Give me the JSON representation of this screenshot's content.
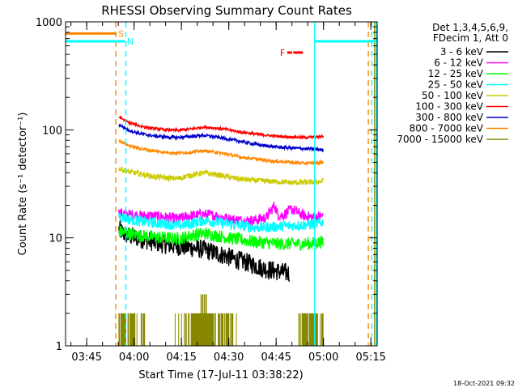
{
  "chart_data": {
    "type": "line",
    "title": "RHESSI Observing Summary Count Rates",
    "xlabel": "Start Time (17-Jul-11 03:38:22)",
    "ylabel": "Count Rate (s⁻¹ detector⁻¹)",
    "yscale": "log",
    "ylim": [
      1,
      1000
    ],
    "xlim_minutes": [
      38.3,
      137.0
    ],
    "x_ticks": [
      {
        "label": "03:45",
        "t": 45
      },
      {
        "label": "04:00",
        "t": 60
      },
      {
        "label": "04:15",
        "t": 75
      },
      {
        "label": "04:30",
        "t": 90
      },
      {
        "label": "04:45",
        "t": 105
      },
      {
        "label": "05:00",
        "t": 120
      },
      {
        "label": "05:15",
        "t": 135
      }
    ],
    "y_ticks": [
      {
        "label": "1",
        "v": 1
      },
      {
        "label": "10",
        "v": 10
      },
      {
        "label": "100",
        "v": 100
      },
      {
        "label": "1000",
        "v": 1000
      }
    ],
    "legend": {
      "header": [
        "Det 1,3,4,5,6,9,",
        "FDecim 1, Att 0"
      ],
      "position": "top-right"
    },
    "series": [
      {
        "name": "3 - 6 keV",
        "color": "#000000",
        "t": [
          55.2,
          56.5,
          58,
          61,
          64,
          67,
          72,
          77,
          82,
          86,
          89,
          92,
          95,
          98,
          101,
          104,
          107,
          109.3
        ],
        "y": [
          12,
          11,
          10.5,
          10,
          9.5,
          9,
          8.5,
          8.2,
          7.8,
          7.2,
          6.8,
          6.3,
          6,
          5.6,
          5.2,
          5,
          4.8,
          4.7
        ]
      },
      {
        "name": "6 - 12 keV",
        "color": "#ff00ff",
        "t": [
          55.2,
          58,
          62,
          66,
          70,
          74,
          78,
          82,
          86,
          90,
          94,
          98,
          102,
          104.5,
          105.5,
          107,
          110,
          112,
          114,
          116,
          118,
          119.9
        ],
        "y": [
          17,
          16.5,
          16,
          16,
          15.5,
          15,
          16,
          16.5,
          16,
          15,
          14.5,
          14.5,
          15.5,
          20,
          16.5,
          16,
          18.5,
          17,
          16,
          15.5,
          15.5,
          16
        ]
      },
      {
        "name": "12 - 25 keV",
        "color": "#00ff00",
        "t": [
          55.2,
          58,
          62,
          66,
          70,
          74,
          78,
          82,
          86,
          90,
          94,
          98,
          102,
          106,
          110,
          114,
          118,
          119.9
        ],
        "y": [
          11.5,
          11,
          10.5,
          10.2,
          10,
          9.8,
          10.5,
          11,
          10.5,
          10,
          9.6,
          9.2,
          9,
          8.8,
          8.8,
          8.8,
          9,
          9.2
        ]
      },
      {
        "name": "25 - 50 keV",
        "color": "#00ffff",
        "t": [
          55.2,
          58,
          62,
          66,
          70,
          74,
          78,
          82,
          86,
          90,
          94,
          98,
          102,
          106,
          110,
          114,
          118,
          119.9
        ],
        "y": [
          16,
          15,
          14.2,
          13.8,
          13.5,
          13,
          13.5,
          14.5,
          14,
          13.5,
          13,
          12.5,
          12.5,
          12.8,
          13,
          13.2,
          13.5,
          14
        ]
      },
      {
        "name": "50 - 100 keV",
        "color": "#cccc00",
        "t": [
          55.2,
          58,
          62,
          66,
          70,
          74,
          78,
          82,
          86,
          90,
          94,
          98,
          102,
          106,
          110,
          114,
          118,
          119.9
        ],
        "y": [
          44,
          41,
          39,
          37,
          36,
          35.5,
          38,
          40,
          38.5,
          36.5,
          35,
          34,
          33.5,
          33,
          32.5,
          32.5,
          33,
          33.5
        ]
      },
      {
        "name": "100 - 300 keV",
        "color": "#ff0000",
        "t": [
          55.2,
          58,
          62,
          66,
          70,
          74,
          78,
          82,
          86,
          90,
          94,
          98,
          102,
          106,
          110,
          114,
          118,
          119.9
        ],
        "y": [
          132,
          118,
          108,
          103,
          100,
          99,
          102,
          106,
          104,
          100,
          95,
          92,
          89,
          87,
          86,
          85,
          86,
          87
        ]
      },
      {
        "name": "300 - 800 keV",
        "color": "#0000cc",
        "t": [
          55.2,
          58,
          62,
          66,
          70,
          74,
          78,
          82,
          86,
          90,
          94,
          98,
          102,
          106,
          110,
          114,
          118,
          119.9
        ],
        "y": [
          112,
          100,
          92,
          88,
          86,
          85,
          87,
          89,
          86,
          82,
          78,
          74,
          71,
          69,
          68,
          67,
          66,
          65
        ]
      },
      {
        "name": "800 - 7000 keV",
        "color": "#ff8800",
        "t": [
          55.2,
          58,
          62,
          66,
          70,
          74,
          78,
          82,
          86,
          90,
          94,
          98,
          102,
          106,
          110,
          114,
          118,
          119.9
        ],
        "y": [
          80,
          72,
          67,
          64,
          62,
          61,
          62,
          64,
          62,
          59,
          56,
          54,
          52,
          51,
          50,
          49,
          49.5,
          50
        ]
      },
      {
        "name": "7000 - 15000 keV",
        "color": "#888800",
        "t": [
          55.2,
          59.5,
          66,
          71,
          79,
          82,
          84,
          90,
          95,
          98,
          102,
          107,
          111,
          114,
          117.2,
          119.9
        ],
        "y": [
          2,
          2,
          1,
          1,
          2,
          3,
          2,
          2,
          1,
          1,
          1,
          1,
          1,
          2,
          2,
          2
        ]
      }
    ],
    "annotations": [
      {
        "label": "S",
        "color": "#ff8800",
        "kind": "saa_flag",
        "t_start": 38.3,
        "t_end": 54.5,
        "level": 780
      },
      {
        "label": "N",
        "color": "#00ffff",
        "kind": "night_flag",
        "t_start": 38.3,
        "t_end": 57.2,
        "level": 660
      },
      {
        "label": "F",
        "color": "#ff0000",
        "kind": "flare_flag",
        "t_start": 108.5,
        "t_end": 113.5,
        "level": 520
      }
    ],
    "interval_boundaries": [
      {
        "color": "#ff8800",
        "t": 54.2,
        "style": "dashed"
      },
      {
        "color": "#00ffff",
        "t": 57.4,
        "style": "dashed"
      },
      {
        "color": "#00ffff",
        "t": 117.2,
        "style": "solid"
      },
      {
        "color": "#ff8800",
        "t": 134.2,
        "style": "dashed"
      },
      {
        "color": "#00ffff",
        "t": 135.3,
        "style": "dashed"
      },
      {
        "color": "#00ffff",
        "t": 136.8,
        "style": "solid"
      },
      {
        "color": "#888800",
        "t": 136.2,
        "style": "solid"
      }
    ]
  },
  "footer": {
    "timestamp": "18-Oct-2021 09:32"
  }
}
